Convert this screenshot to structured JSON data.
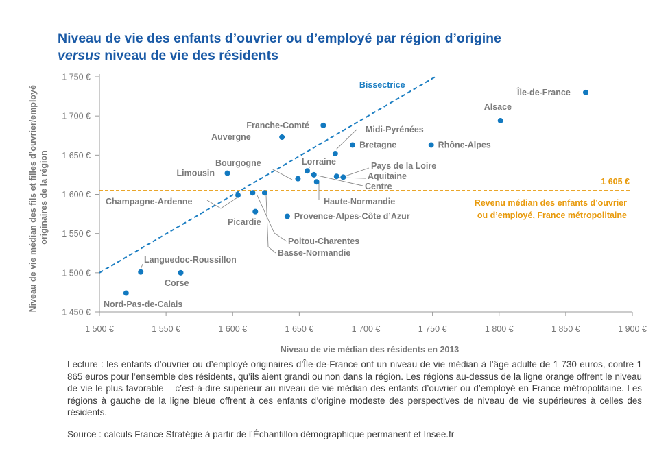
{
  "title": {
    "line1": "Niveau de vie des enfants d’ouvrier ou d’employé par région d’origine",
    "line2_em": "versus",
    "line2_rest": " niveau de vie des résidents"
  },
  "chart_data": {
    "type": "scatter",
    "xlabel": "Niveau de vie médian des résidents en 2013",
    "ylabel_lines": [
      "Niveau de vie médian des fils et filles d’ouvrier/employé",
      "originaires de la région"
    ],
    "xlim": [
      1500,
      1900
    ],
    "ylim": [
      1450,
      1750
    ],
    "x_ticks": [
      1500,
      1550,
      1600,
      1650,
      1700,
      1750,
      1800,
      1850,
      1900
    ],
    "x_tick_labels": [
      "1 500 €",
      "1 550 €",
      "1 600 €",
      "1 650 €",
      "1 700 €",
      "1 750 €",
      "1 800 €",
      "1 850 €",
      "1 900 €"
    ],
    "y_ticks": [
      1450,
      1500,
      1550,
      1600,
      1650,
      1700,
      1750
    ],
    "y_tick_labels": [
      "1 450 €",
      "1 500 €",
      "1 550 €",
      "1 600 €",
      "1 650 €",
      "1 700 €",
      "1 750 €"
    ],
    "grid": false,
    "colors": {
      "points": "#1279c0",
      "bisector": "#1c7ec2",
      "reference": "#e89a0c",
      "title": "#1a5aa6",
      "labels": "#7a7a7a",
      "axis": "#999999"
    },
    "points": [
      {
        "name": "Île-de-France",
        "x": 1865,
        "y": 1730
      },
      {
        "name": "Alsace",
        "x": 1801,
        "y": 1694
      },
      {
        "name": "Rhône-Alpes",
        "x": 1749,
        "y": 1663
      },
      {
        "name": "Franche-Comté",
        "x": 1668,
        "y": 1688
      },
      {
        "name": "Midi-Pyrénées",
        "x": 1677,
        "y": 1652
      },
      {
        "name": "Bretagne",
        "x": 1690,
        "y": 1663
      },
      {
        "name": "Auvergne",
        "x": 1637,
        "y": 1673
      },
      {
        "name": "Limousin",
        "x": 1596,
        "y": 1627
      },
      {
        "name": "Bourgogne",
        "x": 1649,
        "y": 1620
      },
      {
        "name": "Lorraine",
        "x": 1656,
        "y": 1630
      },
      {
        "name": "Pays de la Loire",
        "x": 1683,
        "y": 1622
      },
      {
        "name": "Aquitaine",
        "x": 1678,
        "y": 1623
      },
      {
        "name": "Centre",
        "x": 1661,
        "y": 1625
      },
      {
        "name": "Haute-Normandie",
        "x": 1663,
        "y": 1616
      },
      {
        "name": "Champagne-Ardenne",
        "x": 1604,
        "y": 1599
      },
      {
        "name": "Picardie",
        "x": 1617,
        "y": 1578
      },
      {
        "name": "Provence-Alpes-Côte d’Azur",
        "x": 1641,
        "y": 1572
      },
      {
        "name": "Poitou-Charentes",
        "x": 1615,
        "y": 1602
      },
      {
        "name": "Basse-Normandie",
        "x": 1624,
        "y": 1602
      },
      {
        "name": "Languedoc-Roussillon",
        "x": 1531,
        "y": 1501
      },
      {
        "name": "Corse",
        "x": 1561,
        "y": 1500
      },
      {
        "name": "Nord-Pas-de-Calais",
        "x": 1520,
        "y": 1474
      }
    ],
    "bisector_label": "Bissectrice",
    "reference_value": 1605,
    "reference_value_label": "1 605 €",
    "reference_caption_lines": [
      "Revenu médian des enfants d’ouvrier",
      "ou d’employé, France métropolitaine"
    ]
  },
  "notes": "Lecture : les enfants d’ouvrier ou d’employé originaires d’Île-de-France ont un niveau de vie médian à l’âge adulte de 1 730 euros, contre 1 865 euros pour l’ensemble des résidents, qu’ils aient grandi ou non dans la région. Les régions au-dessus de la ligne orange offrent le niveau de vie le plus favorable – c’est-à-dire supérieur au niveau de vie médian des enfants d’ouvrier ou d’employé en France métropolitaine. Les régions à gauche de la ligne bleue offrent à ces enfants d’origine modeste des perspectives de niveau de vie supérieures à celles des résidents.",
  "source": "Source : calculs France Stratégie à partir de l’Échantillon démographique permanent et Insee.fr"
}
